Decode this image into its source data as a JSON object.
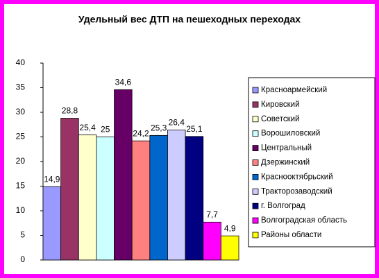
{
  "chart_data": {
    "type": "bar",
    "title": "Удельный вес ДТП на пешеходных переходах",
    "ylim": [
      0,
      40
    ],
    "yticks": [
      0,
      5,
      10,
      15,
      20,
      25,
      30,
      35,
      40
    ],
    "grid": false,
    "legend": "right",
    "series": [
      {
        "name": "Красноармейский",
        "color": "#9999ff",
        "values": [
          14.9
        ],
        "value_labels": [
          "14,9"
        ]
      },
      {
        "name": "Кировский",
        "color": "#993366",
        "values": [
          28.8
        ],
        "value_labels": [
          "28,8"
        ]
      },
      {
        "name": "Советский",
        "color": "#ffffcc",
        "values": [
          25.4
        ],
        "value_labels": [
          "25,4"
        ]
      },
      {
        "name": "Ворошиловский",
        "color": "#ccffff",
        "values": [
          25
        ],
        "value_labels": [
          "25"
        ]
      },
      {
        "name": "Центральный",
        "color": "#660066",
        "values": [
          34.6
        ],
        "value_labels": [
          "34,6"
        ]
      },
      {
        "name": "Дзержинский",
        "color": "#ff8080",
        "values": [
          24.2
        ],
        "value_labels": [
          "24,2"
        ]
      },
      {
        "name": "Краснооктябрьский",
        "color": "#0066cc",
        "values": [
          25.3
        ],
        "value_labels": [
          "25,3"
        ]
      },
      {
        "name": "Тракторозаводский",
        "color": "#ccccff",
        "values": [
          26.4
        ],
        "value_labels": [
          "26,4"
        ]
      },
      {
        "name": "г. Волгоград",
        "color": "#000080",
        "values": [
          25.1
        ],
        "value_labels": [
          "25,1"
        ]
      },
      {
        "name": "Волгоградская область",
        "color": "#ff00ff",
        "values": [
          7.7
        ],
        "value_labels": [
          "7,7"
        ]
      },
      {
        "name": "Районы области",
        "color": "#ffff00",
        "values": [
          4.9
        ],
        "value_labels": [
          "4,9"
        ]
      }
    ]
  }
}
